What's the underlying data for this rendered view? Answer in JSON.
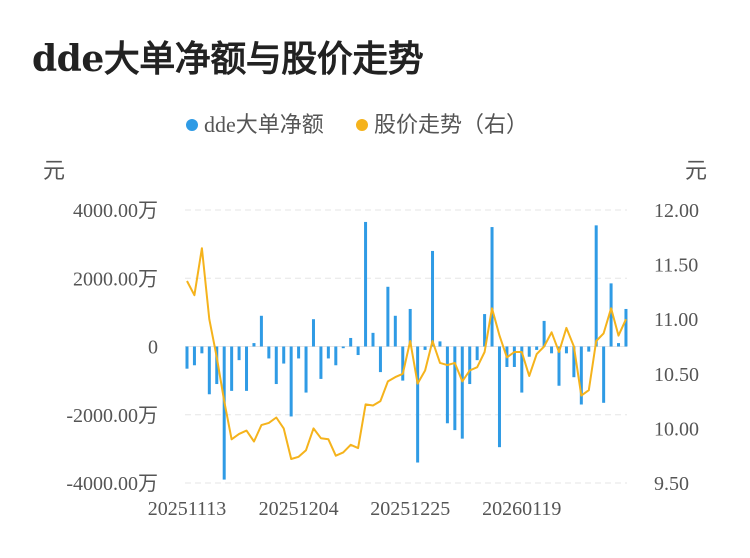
{
  "title": "dde大单净额与股价走势",
  "chart_data": {
    "type": "bar+line",
    "title": "dde大单净额与股价走势",
    "legend": [
      {
        "name": "dde大单净额",
        "color": "#2f9be5"
      },
      {
        "name": "股价走势（右）",
        "color": "#f5b31c"
      }
    ],
    "legend_position": "top-center",
    "y_left": {
      "unit": "元",
      "min": -4000,
      "max": 4000,
      "ticks": [
        4000,
        2000,
        0,
        -2000,
        -4000
      ],
      "tick_labels": [
        "4000.00万",
        "2000.00万",
        "0",
        "-2000.00万",
        "-4000.00万"
      ]
    },
    "y_right": {
      "unit": "元",
      "min": 9.5,
      "max": 12.0,
      "ticks": [
        12.0,
        11.5,
        11.0,
        10.5,
        10.0,
        9.5
      ],
      "tick_labels": [
        "12.00",
        "11.50",
        "11.00",
        "10.50",
        "10.00",
        "9.50"
      ]
    },
    "x_tick_labels": [
      "20251113",
      "20251204",
      "20251225",
      "20260119"
    ],
    "x_tick_index": [
      0,
      15,
      30,
      45
    ],
    "grid": true,
    "series": [
      {
        "name": "dde大单净额",
        "type": "bar",
        "color": "#2f9be5",
        "values": [
          -650,
          -550,
          -200,
          -1400,
          -1100,
          -3900,
          -1300,
          -400,
          -1300,
          100,
          900,
          -350,
          -1100,
          -500,
          -2050,
          -350,
          -1350,
          800,
          -950,
          -350,
          -550,
          -50,
          250,
          -250,
          3650,
          400,
          -750,
          1750,
          900,
          -1000,
          1100,
          -3400,
          -100,
          2800,
          150,
          -2250,
          -2450,
          -2700,
          -1100,
          -400,
          950,
          3500,
          -2950,
          -600,
          -600,
          -1350,
          -300,
          -100,
          750,
          -200,
          -1150,
          -200,
          -900,
          -1700,
          -150,
          3550,
          -1650,
          1850,
          100,
          1100
        ]
      },
      {
        "name": "股价走势（右）",
        "type": "line",
        "color": "#f5b31c",
        "values": [
          11.35,
          11.22,
          11.65,
          11.0,
          10.65,
          10.25,
          9.9,
          9.95,
          9.98,
          9.88,
          10.03,
          10.05,
          10.1,
          10.0,
          9.72,
          9.74,
          9.8,
          10.0,
          9.91,
          9.9,
          9.75,
          9.78,
          9.85,
          9.82,
          10.22,
          10.21,
          10.25,
          10.43,
          10.47,
          10.5,
          10.8,
          10.41,
          10.53,
          10.8,
          10.6,
          10.58,
          10.6,
          10.43,
          10.53,
          10.56,
          10.7,
          11.1,
          10.85,
          10.65,
          10.7,
          10.7,
          10.48,
          10.68,
          10.75,
          10.88,
          10.7,
          10.92,
          10.75,
          10.3,
          10.35,
          10.8,
          10.87,
          11.1,
          10.85,
          11.0
        ]
      }
    ]
  }
}
